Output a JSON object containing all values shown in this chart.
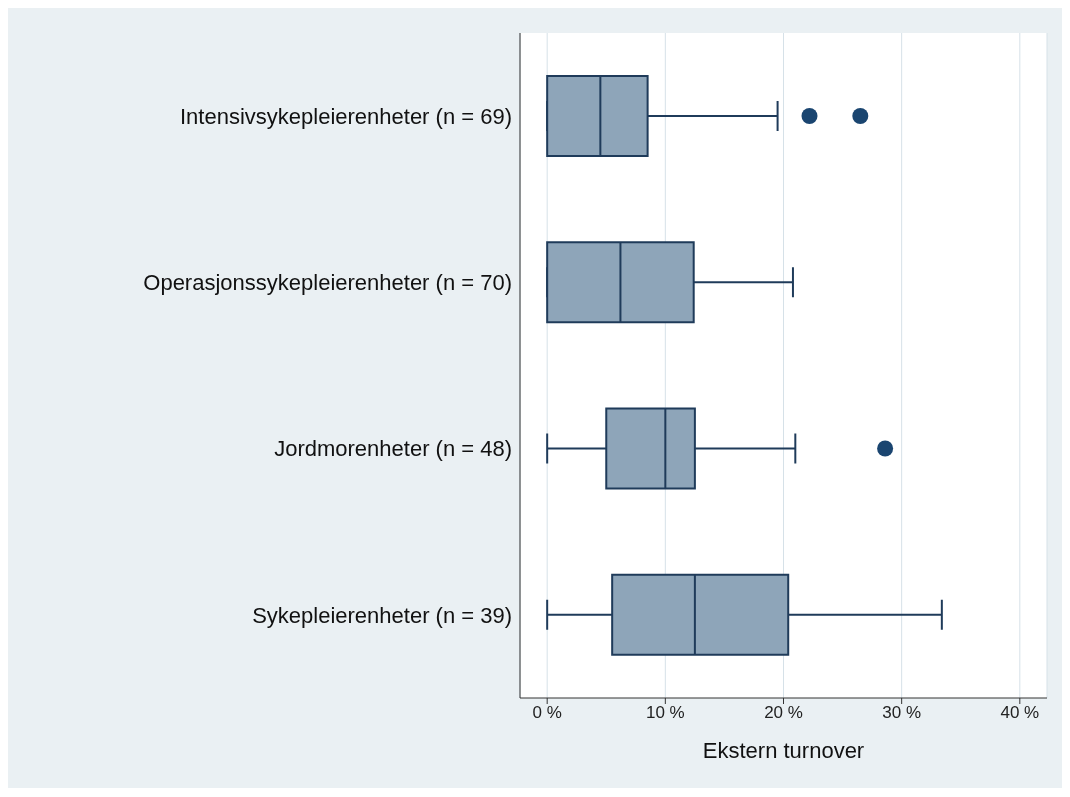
{
  "chart_data": {
    "type": "box",
    "orientation": "horizontal",
    "xlabel": "Ekstern turnover",
    "categories": [
      "Intensivsykepleierenheter (n = 69)",
      "Operasjonssykepleierenheter (n = 70)",
      "Jordmorenheter (n = 48)",
      "Sykepleierenheter (n = 39)"
    ],
    "boxes": [
      {
        "low": 0,
        "q1": 0,
        "median": 4.5,
        "q3": 8.5,
        "high": 19.5,
        "outliers": [
          22.2,
          26.5
        ]
      },
      {
        "low": 0,
        "q1": 0,
        "median": 6.2,
        "q3": 12.4,
        "high": 20.8
      },
      {
        "low": 0,
        "q1": 5,
        "median": 10,
        "q3": 12.5,
        "high": 21,
        "outliers": [
          28.6
        ]
      },
      {
        "low": 0,
        "q1": 5.5,
        "median": 12.5,
        "q3": 20.4,
        "high": 33.4
      }
    ],
    "color": "#8ea5b9",
    "xlim": [
      -2.3,
      42.3
    ],
    "xticks": [
      {
        "value": 0,
        "label": "0 %"
      },
      {
        "value": 10,
        "label": "10 %"
      },
      {
        "value": 20,
        "label": "20 %"
      },
      {
        "value": 30,
        "label": "30 %"
      },
      {
        "value": 40,
        "label": "40 %"
      }
    ],
    "grid": "x"
  }
}
